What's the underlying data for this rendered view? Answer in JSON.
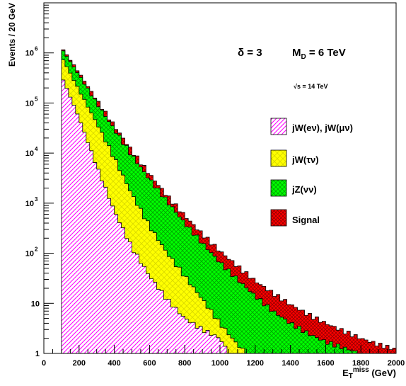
{
  "chart_data": {
    "type": "area",
    "stacked": true,
    "histogram": true,
    "xlabel_main": "E",
    "xlabel_sub": "T",
    "xlabel_sup": "miss",
    "xlabel_unit": " (GeV)",
    "ylabel": "Events / 20 GeV",
    "xlim": [
      0,
      2000
    ],
    "ylim": [
      1,
      10000000
    ],
    "yscale": "log",
    "x_ticks": [
      "0",
      "200",
      "400",
      "600",
      "800",
      "1000",
      "1200",
      "1400",
      "1600",
      "1800",
      "2000"
    ],
    "y_ticks": [
      {
        "base": "1",
        "exp": ""
      },
      {
        "base": "10",
        "exp": ""
      },
      {
        "base": "10",
        "exp": "2"
      },
      {
        "base": "10",
        "exp": "3"
      },
      {
        "base": "10",
        "exp": "4"
      },
      {
        "base": "10",
        "exp": "5"
      },
      {
        "base": "10",
        "exp": "6"
      }
    ],
    "annotations": {
      "delta": "δ = 3",
      "md_main": "M",
      "md_sub": "D",
      "md_rest": " = 6 TeV",
      "sqrts": "√s = 14 TeV"
    },
    "legend": {
      "position": "right",
      "entries": [
        {
          "label": "jW(eν), jW(μν)",
          "color": "#ff00ff",
          "pattern": "diagonal-hatch"
        },
        {
          "label": "jW(τν)",
          "color": "#ffff00",
          "pattern": "crosshatch"
        },
        {
          "label": "jZ(νν)",
          "color": "#00ff00",
          "pattern": "crosshatch"
        },
        {
          "label": "Signal",
          "color": "#ff0000",
          "pattern": "crosshatch"
        }
      ]
    },
    "series": [
      {
        "name": "jW(eν), jW(μν)",
        "color": "#ff00ff",
        "x": [
          100,
          200,
          300,
          400,
          500,
          600,
          700,
          800,
          900,
          1000,
          1050
        ],
        "values": [
          350000,
          50000,
          5500,
          700,
          130,
          35,
          12,
          5,
          3,
          2,
          1
        ]
      },
      {
        "name": "jW(τν)",
        "color": "#ffff00",
        "x": [
          100,
          200,
          300,
          400,
          500,
          600,
          700,
          800,
          900,
          1000,
          1100,
          1150
        ],
        "values": [
          850000,
          180000,
          40000,
          8000,
          1500,
          350,
          100,
          35,
          12,
          4,
          1.5,
          1
        ]
      },
      {
        "name": "jZ(νν)",
        "color": "#00ff00",
        "x": [
          100,
          200,
          300,
          400,
          500,
          600,
          700,
          800,
          900,
          1000,
          1100,
          1200,
          1300,
          1400,
          1500,
          1600,
          1700,
          1800
        ],
        "values": [
          1250000,
          360000,
          100000,
          30000,
          9000,
          3000,
          1100,
          400,
          160,
          65,
          30,
          14,
          7,
          4,
          2.5,
          1.7,
          1.3,
          1
        ]
      },
      {
        "name": "Signal",
        "color": "#ff0000",
        "x": [
          100,
          200,
          300,
          400,
          500,
          600,
          700,
          800,
          900,
          1000,
          1100,
          1200,
          1300,
          1400,
          1500,
          1600,
          1700,
          1800,
          1900,
          2000
        ],
        "values": [
          1300000,
          400000,
          115000,
          35000,
          11000,
          3800,
          1400,
          560,
          240,
          110,
          55,
          28,
          16,
          9.5,
          6,
          4,
          2.8,
          2,
          1.5,
          1.2
        ]
      }
    ]
  }
}
